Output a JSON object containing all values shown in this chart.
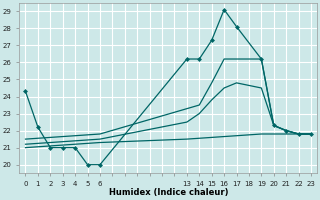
{
  "xlabel": "Humidex (Indice chaleur)",
  "background_color": "#cde8e8",
  "grid_color": "#ffffff",
  "line_color": "#006666",
  "xlim": [
    -0.5,
    23.5
  ],
  "ylim": [
    19.5,
    29.5
  ],
  "xticks": [
    0,
    1,
    2,
    3,
    4,
    5,
    6,
    13,
    14,
    15,
    16,
    17,
    18,
    19,
    20,
    21,
    22,
    23
  ],
  "yticks": [
    20,
    21,
    22,
    23,
    24,
    25,
    26,
    27,
    28,
    29
  ],
  "figsize": [
    3.2,
    2.0
  ],
  "dpi": 100,
  "lines": [
    {
      "x": [
        0,
        1,
        2,
        3,
        4,
        5,
        6,
        13,
        14,
        15,
        16,
        17,
        19,
        20,
        21,
        22,
        23
      ],
      "y": [
        24.3,
        22.2,
        21.0,
        21.0,
        21.0,
        20.0,
        20.0,
        26.2,
        26.2,
        27.3,
        29.1,
        28.1,
        26.2,
        22.3,
        22.0,
        21.8,
        21.8
      ],
      "marker": "D",
      "markersize": 2.0,
      "linewidth": 0.9
    },
    {
      "x": [
        0,
        6,
        14,
        15,
        16,
        17,
        19,
        20,
        21,
        22,
        23
      ],
      "y": [
        21.5,
        21.8,
        23.5,
        24.8,
        26.2,
        26.2,
        26.2,
        22.3,
        22.0,
        21.8,
        21.8
      ],
      "marker": null,
      "markersize": 0,
      "linewidth": 0.9
    },
    {
      "x": [
        0,
        6,
        13,
        14,
        15,
        16,
        17,
        19,
        20,
        21,
        22,
        23
      ],
      "y": [
        21.2,
        21.5,
        22.5,
        23.0,
        23.8,
        24.5,
        24.8,
        24.5,
        22.3,
        22.0,
        21.8,
        21.8
      ],
      "marker": null,
      "markersize": 0,
      "linewidth": 0.9
    },
    {
      "x": [
        0,
        6,
        13,
        19,
        21,
        22,
        23
      ],
      "y": [
        21.0,
        21.3,
        21.5,
        21.8,
        21.8,
        21.8,
        21.8
      ],
      "marker": null,
      "markersize": 0,
      "linewidth": 0.9
    }
  ]
}
